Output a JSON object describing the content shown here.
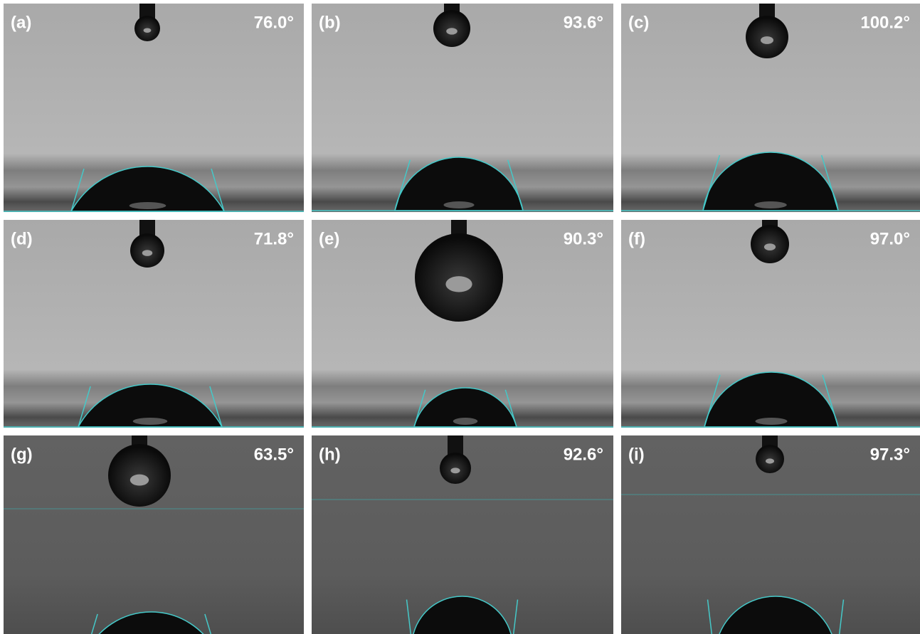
{
  "panels": [
    {
      "label": "(a)",
      "angle": "76.0°"
    },
    {
      "label": "(b)",
      "angle": "93.6°"
    },
    {
      "label": "(c)",
      "angle": "100.2°"
    },
    {
      "label": "(d)",
      "angle": "71.8°"
    },
    {
      "label": "(e)",
      "angle": "90.3°"
    },
    {
      "label": "(f)",
      "angle": "97.0°"
    },
    {
      "label": "(g)",
      "angle": "63.5°"
    },
    {
      "label": "(h)",
      "angle": "92.6°"
    },
    {
      "label": "(i)",
      "angle": "97.3°"
    }
  ]
}
